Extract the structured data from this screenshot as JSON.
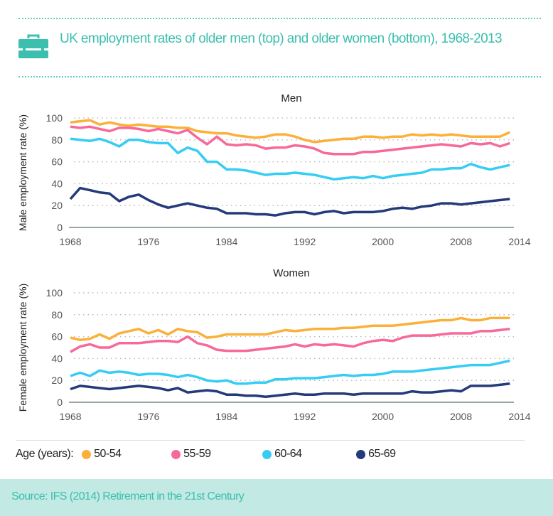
{
  "header": {
    "title": "UK employment rates of older men (top) and older women (bottom), 1968-2013",
    "icon": "briefcase-icon"
  },
  "legend": {
    "label": "Age (years):",
    "items": [
      {
        "name": "50-54",
        "color": "#fbb03b"
      },
      {
        "name": "55-59",
        "color": "#f7699a"
      },
      {
        "name": "60-64",
        "color": "#36cdf5"
      },
      {
        "name": "65-69",
        "color": "#243a7a"
      }
    ]
  },
  "footer": {
    "source": "Source: IFS (2014) Retirement in the 21st Century"
  },
  "chart_data": [
    {
      "type": "line",
      "title": "Men",
      "ylabel": "Male employment rate (%)",
      "xlabel": "",
      "ylim": [
        0,
        100
      ],
      "yticks": [
        0,
        20,
        40,
        60,
        80,
        100
      ],
      "xticks": [
        1968,
        1976,
        1984,
        1992,
        2000,
        2008,
        2014
      ],
      "xlim": [
        1968,
        2014
      ],
      "grid": "horizontal dotted",
      "x_start": 1968,
      "x_end": 2013,
      "series": [
        {
          "name": "50-54",
          "values": [
            96,
            97,
            98,
            94,
            96,
            94,
            93,
            94,
            93,
            92,
            92,
            91,
            91,
            88,
            87,
            86,
            86,
            84,
            83,
            82,
            83,
            85,
            85,
            83,
            80,
            78,
            79,
            80,
            81,
            81,
            83,
            83,
            82,
            83,
            83,
            85,
            84,
            85,
            84,
            85,
            84,
            83,
            83,
            83,
            83,
            87
          ]
        },
        {
          "name": "55-59",
          "values": [
            92,
            91,
            92,
            90,
            88,
            91,
            91,
            90,
            88,
            90,
            88,
            86,
            89,
            82,
            76,
            83,
            76,
            75,
            76,
            75,
            72,
            73,
            73,
            75,
            74,
            72,
            68,
            67,
            67,
            67,
            69,
            69,
            70,
            71,
            72,
            73,
            74,
            75,
            76,
            75,
            74,
            77,
            76,
            77,
            74,
            77
          ]
        },
        {
          "name": "60-64",
          "values": [
            81,
            80,
            79,
            81,
            78,
            74,
            80,
            80,
            78,
            77,
            77,
            68,
            73,
            70,
            60,
            60,
            53,
            53,
            52,
            50,
            48,
            49,
            49,
            50,
            49,
            48,
            46,
            44,
            45,
            46,
            45,
            47,
            45,
            47,
            48,
            49,
            50,
            53,
            53,
            54,
            54,
            58,
            55,
            53,
            55,
            57
          ]
        },
        {
          "name": "65-69",
          "values": [
            26,
            36,
            34,
            32,
            31,
            24,
            28,
            30,
            25,
            21,
            18,
            20,
            22,
            20,
            18,
            17,
            13,
            13,
            13,
            12,
            12,
            11,
            13,
            14,
            14,
            12,
            14,
            15,
            13,
            14,
            14,
            14,
            15,
            17,
            18,
            17,
            19,
            20,
            22,
            22,
            21,
            22,
            23,
            24,
            25,
            26
          ]
        }
      ]
    },
    {
      "type": "line",
      "title": "Women",
      "ylabel": "Female employment rate (%)",
      "xlabel": "",
      "ylim": [
        0,
        100
      ],
      "yticks": [
        0,
        20,
        40,
        60,
        80,
        100
      ],
      "xticks": [
        1968,
        1976,
        1984,
        1992,
        2000,
        2008,
        2014
      ],
      "xlim": [
        1968,
        2014
      ],
      "grid": "horizontal dotted",
      "x_start": 1968,
      "x_end": 2013,
      "series": [
        {
          "name": "50-54",
          "values": [
            59,
            57,
            58,
            62,
            58,
            63,
            65,
            67,
            63,
            66,
            62,
            67,
            65,
            64,
            59,
            60,
            62,
            62,
            62,
            62,
            62,
            64,
            66,
            65,
            66,
            67,
            67,
            67,
            68,
            68,
            69,
            70,
            70,
            70,
            71,
            72,
            73,
            74,
            75,
            75,
            77,
            75,
            75,
            77,
            77,
            77
          ]
        },
        {
          "name": "55-59",
          "values": [
            46,
            51,
            53,
            50,
            50,
            54,
            54,
            54,
            55,
            56,
            56,
            55,
            60,
            54,
            52,
            48,
            47,
            47,
            47,
            48,
            49,
            50,
            51,
            53,
            51,
            53,
            52,
            53,
            52,
            51,
            54,
            56,
            57,
            56,
            59,
            61,
            61,
            61,
            62,
            63,
            63,
            63,
            65,
            65,
            66,
            67
          ]
        },
        {
          "name": "60-64",
          "values": [
            24,
            27,
            24,
            29,
            27,
            28,
            27,
            25,
            26,
            26,
            25,
            23,
            25,
            23,
            20,
            19,
            20,
            17,
            17,
            18,
            18,
            21,
            21,
            22,
            22,
            22,
            23,
            24,
            25,
            24,
            25,
            25,
            26,
            28,
            28,
            28,
            29,
            30,
            31,
            32,
            33,
            34,
            34,
            34,
            36,
            38
          ]
        },
        {
          "name": "65-69",
          "values": [
            12,
            15,
            14,
            13,
            12,
            13,
            14,
            15,
            14,
            13,
            11,
            13,
            9,
            10,
            11,
            10,
            7,
            7,
            6,
            6,
            5,
            6,
            7,
            8,
            7,
            7,
            8,
            8,
            8,
            7,
            8,
            8,
            8,
            8,
            8,
            10,
            9,
            9,
            10,
            11,
            10,
            15,
            15,
            15,
            16,
            17
          ]
        }
      ]
    }
  ]
}
